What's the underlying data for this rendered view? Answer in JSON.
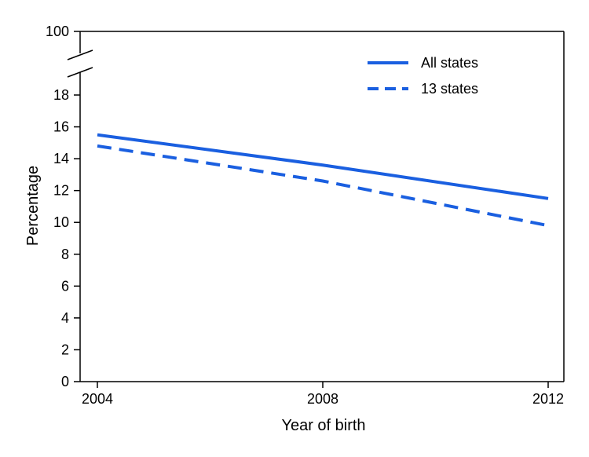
{
  "chart_data": {
    "type": "line",
    "x": [
      2004,
      2008,
      2012
    ],
    "series": [
      {
        "name": "All states",
        "values": [
          15.5,
          13.6,
          11.5
        ],
        "color": "#1a5fe0",
        "style": "solid"
      },
      {
        "name": "13 states",
        "values": [
          14.8,
          12.6,
          9.8
        ],
        "color": "#1a5fe0",
        "style": "dashed"
      }
    ],
    "title": "",
    "xlabel": "Year of birth",
    "ylabel": "Percentage",
    "xlim": [
      2004,
      2012
    ],
    "ylim": [
      0,
      19.5
    ],
    "yticks": [
      0,
      2,
      4,
      6,
      8,
      10,
      12,
      14,
      16,
      18
    ],
    "xticks": [
      2004,
      2008,
      2012
    ],
    "axis_break": {
      "top_tick": 100
    },
    "grid": false,
    "legend": {
      "position": "top-right"
    }
  }
}
